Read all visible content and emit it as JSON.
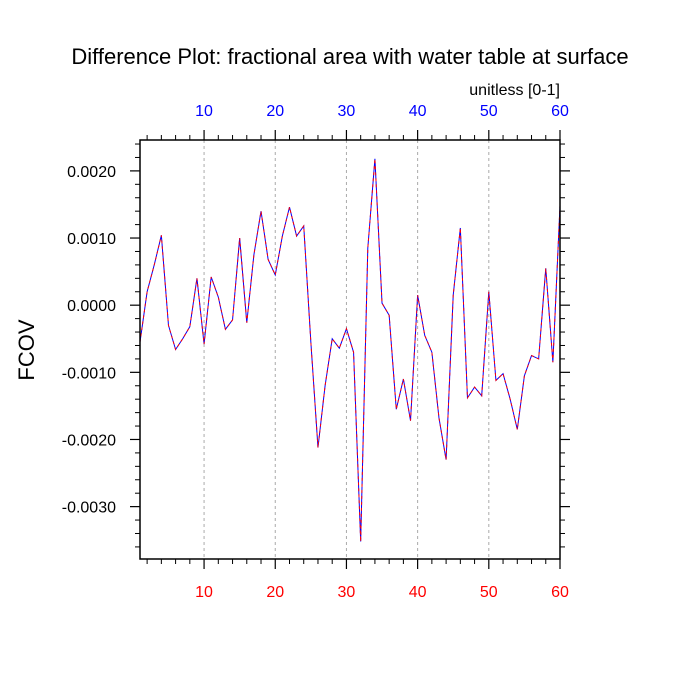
{
  "chart_data": {
    "type": "line",
    "title": "Difference Plot: fractional area with water table at surface",
    "ylabel": "FCOV",
    "top_axis_units": "unitless [0-1]",
    "xlim": [
      1,
      60
    ],
    "ylim": [
      -0.00378,
      0.00246
    ],
    "x_ticks": [
      10,
      20,
      30,
      40,
      50,
      60
    ],
    "x_tick_labels": [
      "10",
      "20",
      "30",
      "40",
      "50",
      "60"
    ],
    "y_ticks": [
      0.002,
      0.001,
      0.0,
      -0.001,
      -0.002,
      -0.003
    ],
    "y_tick_labels": [
      "0.0020",
      "0.0010",
      "0.0000",
      "-0.0010",
      "-0.0020",
      "-0.0030"
    ],
    "grid": "vertical dashed at major x ticks",
    "bottom_tick_color": "#ff0000",
    "top_tick_color": "#0000ff",
    "series": [
      {
        "color": "#0000ff",
        "dash_color": "#ff0000",
        "x": [
          1,
          2,
          3,
          4,
          5,
          6,
          7,
          8,
          9,
          10,
          11,
          12,
          13,
          14,
          15,
          16,
          17,
          18,
          19,
          20,
          21,
          22,
          23,
          24,
          25,
          26,
          27,
          28,
          29,
          30,
          31,
          32,
          33,
          34,
          35,
          36,
          37,
          38,
          39,
          40,
          41,
          42,
          43,
          44,
          45,
          46,
          47,
          48,
          49,
          50,
          51,
          52,
          53,
          54,
          55,
          56,
          57,
          58,
          59,
          60
        ],
        "values": [
          -0.00055,
          0.0002,
          0.0006,
          0.00104,
          -0.0003,
          -0.00066,
          -0.0005,
          -0.00032,
          0.0004,
          -0.00058,
          0.00042,
          0.00012,
          -0.00036,
          -0.00022,
          0.001,
          -0.00026,
          0.00075,
          0.0014,
          0.00068,
          0.00045,
          0.00103,
          0.00146,
          0.00103,
          0.00118,
          -0.00055,
          -0.00212,
          -0.0012,
          -0.0005,
          -0.00064,
          -0.00035,
          -0.0007,
          -0.00352,
          0.00085,
          0.00218,
          3e-05,
          -0.00015,
          -0.00155,
          -0.0011,
          -0.00172,
          0.00015,
          -0.00045,
          -0.0007,
          -0.00168,
          -0.0023,
          0.00015,
          0.00115,
          -0.00138,
          -0.00122,
          -0.00135,
          0.0002,
          -0.00112,
          -0.00102,
          -0.0014,
          -0.00185,
          -0.00105,
          -0.00075,
          -0.0008,
          0.00055,
          -0.00085,
          0.00148
        ]
      }
    ]
  }
}
